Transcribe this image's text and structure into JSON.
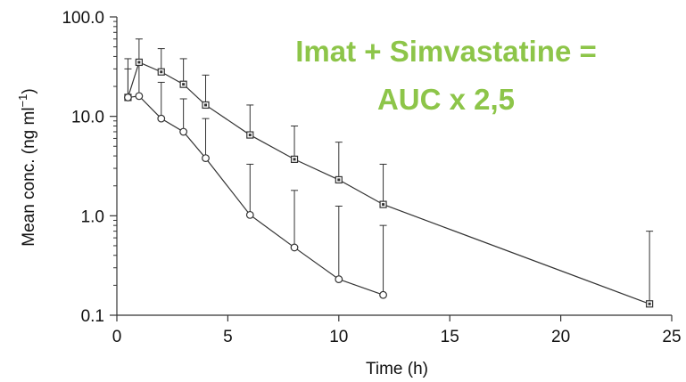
{
  "chart_data": {
    "type": "line",
    "title": "",
    "xlabel": "Time (h)",
    "ylabel_main": "Mean conc. (ng ml",
    "ylabel_sup": "−1",
    "ylabel_close": ")",
    "yscale": "log",
    "xlim": [
      0,
      25
    ],
    "ylim": [
      0.1,
      100
    ],
    "x_ticks": [
      "0",
      "5",
      "10",
      "15",
      "20",
      "25"
    ],
    "x_tick_values": [
      0,
      5,
      10,
      15,
      20,
      25
    ],
    "y_ticks": [
      "0.1",
      "1.0",
      "10.0",
      "100.0"
    ],
    "y_tick_values": [
      0.1,
      1,
      10,
      100
    ],
    "grid": false,
    "series": [
      {
        "marker": "square",
        "x": [
          0.5,
          1,
          2,
          3,
          4,
          6,
          8,
          10,
          12,
          24
        ],
        "y": [
          15.5,
          35,
          28,
          21,
          13,
          6.5,
          3.7,
          2.3,
          1.3,
          0.13
        ],
        "error_upper": [
          38,
          60,
          48,
          38,
          26,
          13,
          8,
          5.5,
          3.3,
          0.7
        ]
      },
      {
        "marker": "circle",
        "x": [
          0.5,
          1,
          2,
          3,
          4,
          6,
          8,
          10,
          12
        ],
        "y": [
          15.5,
          16,
          9.5,
          7,
          3.8,
          1.02,
          0.48,
          0.23,
          0.16
        ],
        "error_upper": [
          30,
          36,
          22,
          15,
          9.5,
          3.3,
          1.8,
          1.25,
          0.8
        ]
      }
    ]
  },
  "annotation": {
    "line1": "Imat + Simvastatine =",
    "line2": "AUC x 2,5",
    "color": "#8dc549"
  }
}
